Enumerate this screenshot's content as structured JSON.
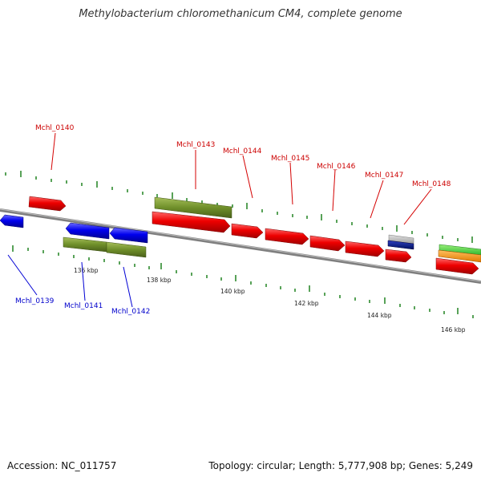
{
  "title": "Methylobacterium chloromethanicum CM4, complete genome",
  "footer": {
    "accession": "Accession: NC_011757",
    "summary": "Topology: circular; Length: 5,777,908 bp; Genes: 5,249"
  },
  "colors": {
    "forward_cds": "#e00000",
    "reverse_cds": "#0000e0",
    "label_forward": "#cc0000",
    "label_reverse": "#0000cc",
    "gene_feature": "#6f8f2a",
    "tick": "#228b22",
    "backbone": "#808080"
  },
  "scale_labels": [
    "136 kbp",
    "138 kbp",
    "140 kbp",
    "142 kbp",
    "144 kbp",
    "146 kbp"
  ],
  "gene_labels": {
    "top": [
      "Mchl_0140",
      "Mchl_0143",
      "Mchl_0144",
      "Mchl_0145",
      "Mchl_0146",
      "Mchl_0147",
      "Mchl_0148"
    ],
    "bottom": [
      "Mchl_0139",
      "Mchl_0141",
      "Mchl_0142"
    ]
  }
}
